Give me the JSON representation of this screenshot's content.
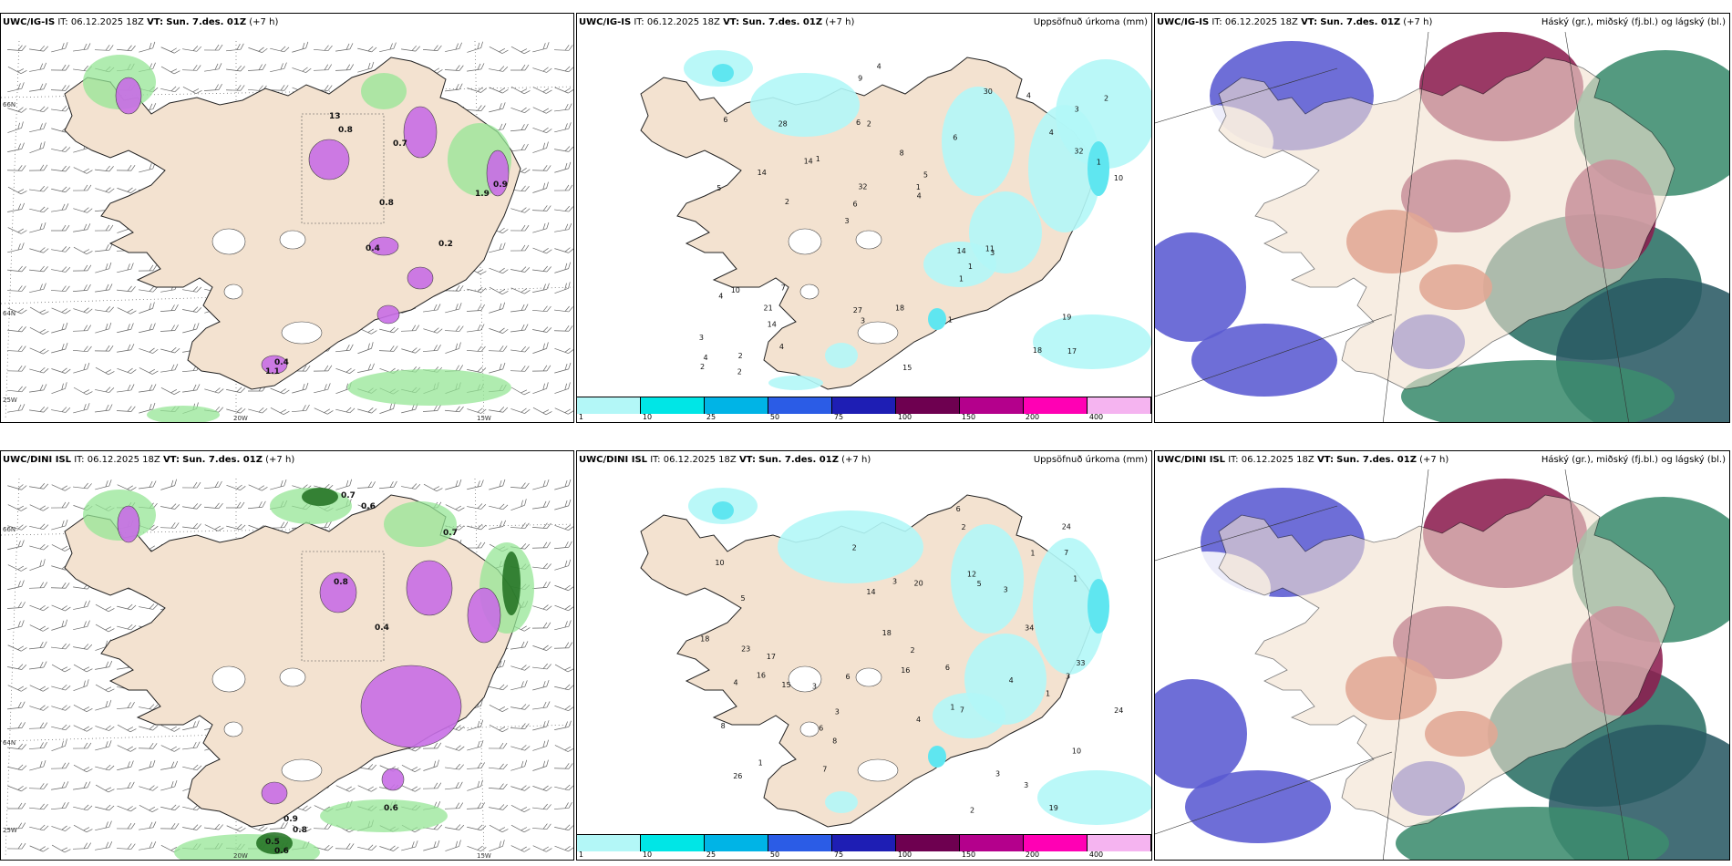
{
  "panels": [
    {
      "model": "UWC/IG-IS",
      "it": "IT: 06.12.2025 18Z",
      "vt_label": "VT:",
      "vt": "Sun. 7.des. 01Z",
      "lead": "(+7 h)",
      "right": ""
    },
    {
      "model": "UWC/IG-IS",
      "it": "IT: 06.12.2025 18Z",
      "vt_label": "VT:",
      "vt": "Sun. 7.des. 01Z",
      "lead": "(+7 h)",
      "right": "Uppsöfnuð úrkoma (mm)"
    },
    {
      "model": "UWC/IG-IS",
      "it": "IT: 06.12.2025 18Z",
      "vt_label": "VT:",
      "vt": "Sun. 7.des. 01Z",
      "lead": "(+7 h)",
      "right": "Háský (gr.), miðský (fj.bl.) og lágský (bl.)"
    },
    {
      "model": "UWC/DINI ISL",
      "it": "IT: 06.12.2025 18Z",
      "vt_label": "VT:",
      "vt": "Sun. 7.des. 01Z",
      "lead": "(+7 h)",
      "right": ""
    },
    {
      "model": "UWC/DINI ISL",
      "it": "IT: 06.12.2025 18Z",
      "vt_label": "VT:",
      "vt": "Sun. 7.des. 01Z",
      "lead": "(+7 h)",
      "right": "Uppsöfnuð úrkoma (mm)"
    },
    {
      "model": "UWC/DINI ISL",
      "it": "IT: 06.12.2025 18Z",
      "vt_label": "VT:",
      "vt": "Sun. 7.des. 01Z",
      "lead": "(+7 h)",
      "right": "Háský (gr.), miðský (fj.bl.) og lágský (bl.)"
    }
  ],
  "axes": {
    "lat66": "66N",
    "lat64": "64N",
    "lon25": "25W",
    "lon20": "20W",
    "lon15": "15W"
  },
  "colorbar": {
    "ticks": [
      "1",
      "10",
      "25",
      "50",
      "75",
      "100",
      "150",
      "200",
      "400"
    ],
    "colors": [
      "#b3f7f7",
      "#00e6e6",
      "#00b4e6",
      "#2b5ce6",
      "#1e1eb4",
      "#6e0050",
      "#b4008c",
      "#ff00b4",
      "#f5b4f0"
    ]
  },
  "precip_labels_top": [
    "17",
    "5",
    "3",
    "3",
    "6",
    "2",
    "6",
    "8",
    "10",
    "1",
    "3",
    "14",
    "2",
    "5",
    "3",
    "6",
    "9",
    "10",
    "14",
    "32",
    "6",
    "27",
    "32",
    "28",
    "30",
    "7",
    "18",
    "19",
    "11",
    "15",
    "14",
    "14",
    "1",
    "4",
    "1",
    "1",
    "4",
    "3",
    "4",
    "4",
    "4",
    "2",
    "1",
    "1",
    "21",
    "2",
    "2",
    "18",
    "4",
    "4",
    "2"
  ],
  "precip_labels_bottom": [
    "19",
    "16",
    "1",
    "10",
    "10",
    "5",
    "1",
    "3",
    "3",
    "3",
    "5",
    "3",
    "8",
    "2",
    "6",
    "8",
    "4",
    "2",
    "18",
    "26",
    "24",
    "20",
    "34",
    "24",
    "33",
    "23",
    "15",
    "16",
    "18",
    "7",
    "7",
    "4",
    "6",
    "12",
    "14",
    "1",
    "3",
    "3",
    "1",
    "2",
    "3",
    "4",
    "7",
    "6",
    "6",
    "17",
    "1",
    "2"
  ],
  "snow_labels_top": [
    "13",
    "0.8",
    "0.7",
    "0.8",
    "0.4",
    "0.2",
    "1.9",
    "0.9",
    "0.4",
    "1.1"
  ],
  "snow_labels_bottom": [
    "0.7",
    "0.6",
    "0.7",
    "0.8",
    "0.4",
    "0.8",
    "0.6",
    "0.9",
    "0.5",
    "0.6"
  ]
}
